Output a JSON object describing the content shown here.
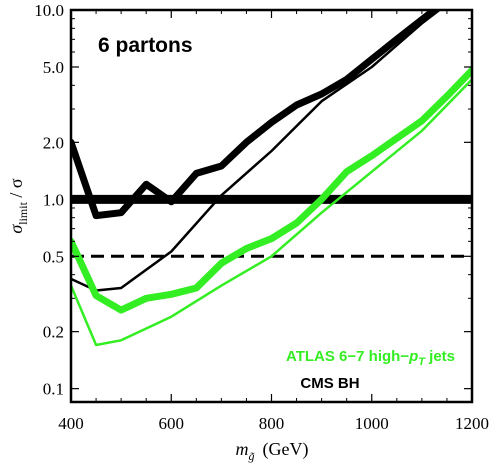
{
  "chart_data": {
    "type": "line",
    "title": "6 partons",
    "xlabel": {
      "main": "m",
      "sub": "g̃",
      "unit": "(GeV)"
    },
    "ylabel": {
      "main": "σ",
      "sub": "limit",
      "rest": " / σ"
    },
    "x_axis": {
      "range": [
        400,
        1200
      ],
      "ticks": [
        400,
        600,
        800,
        1000,
        1200
      ],
      "tick_labels": [
        "400",
        "600",
        "800",
        "1000",
        "1200"
      ]
    },
    "y_axis": {
      "scale": "log",
      "range": [
        0.085,
        10.0
      ],
      "ticks": [
        0.1,
        0.2,
        0.5,
        1.0,
        2.0,
        5.0,
        10.0
      ],
      "tick_labels": [
        "0.1",
        "0.2",
        "0.5",
        "1.0",
        "2.0",
        "5.0",
        "10.0"
      ]
    },
    "grid": false,
    "legend": {
      "placement": "bottom-right",
      "entries": [
        {
          "label": "ATLAS 6−7 high−",
          "math": "p",
          "sub": "T",
          "tail": " jets",
          "color": "#33ee22"
        },
        {
          "label": "CMS BH",
          "color": "#000000"
        }
      ]
    },
    "reference_lines": [
      {
        "y": 1.0,
        "style": "solid-thick",
        "color": "#000000"
      },
      {
        "y": 0.5,
        "style": "dashed",
        "color": "#000000"
      }
    ],
    "series": [
      {
        "color": "#000000",
        "width": "thick",
        "x": [
          400,
          450,
          500,
          550,
          600,
          650,
          700,
          750,
          800,
          850,
          900,
          950,
          1000,
          1050,
          1100,
          1125
        ],
        "y": [
          2.0,
          0.82,
          0.85,
          1.2,
          0.97,
          1.37,
          1.5,
          2.0,
          2.55,
          3.15,
          3.6,
          4.3,
          5.5,
          7.0,
          8.9,
          10.0
        ]
      },
      {
        "color": "#000000",
        "width": "thin",
        "x": [
          400,
          450,
          500,
          600,
          700,
          800,
          900,
          1000,
          1100,
          1135
        ],
        "y": [
          0.38,
          0.33,
          0.34,
          0.53,
          1.05,
          1.8,
          3.3,
          5.0,
          8.5,
          10.0
        ]
      },
      {
        "color": "#33ee22",
        "width": "thick",
        "x": [
          400,
          450,
          500,
          550,
          600,
          650,
          700,
          750,
          800,
          850,
          900,
          950,
          1000,
          1050,
          1100,
          1150,
          1200
        ],
        "y": [
          0.6,
          0.31,
          0.26,
          0.3,
          0.315,
          0.34,
          0.46,
          0.55,
          0.62,
          0.75,
          1.0,
          1.4,
          1.7,
          2.1,
          2.6,
          3.5,
          4.8
        ]
      },
      {
        "color": "#33ee22",
        "width": "thin",
        "x": [
          400,
          450,
          500,
          600,
          700,
          800,
          900,
          1000,
          1100,
          1200
        ],
        "y": [
          0.35,
          0.17,
          0.18,
          0.24,
          0.35,
          0.5,
          0.85,
          1.4,
          2.3,
          4.3
        ]
      }
    ]
  }
}
